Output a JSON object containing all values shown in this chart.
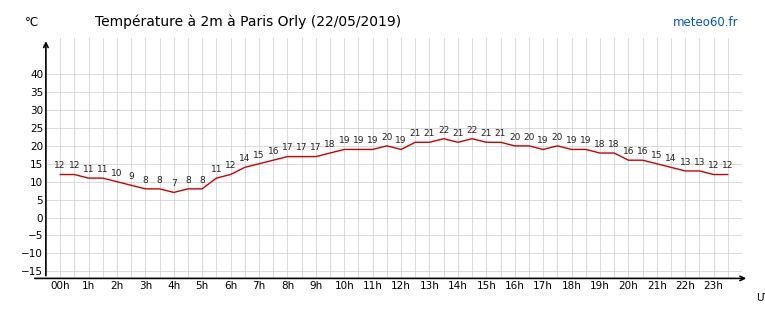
{
  "title": "Température à 2m à Paris Orly (22/05/2019)",
  "ylabel": "°C",
  "watermark": "meteo60.fr",
  "line_color": "#cc0000",
  "grid_color": "#cccccc",
  "bg_color": "#ffffff",
  "title_fontsize": 10,
  "label_fontsize": 7.5,
  "temp_label_fontsize": 6.5,
  "ylim": [
    -17,
    50
  ],
  "yticks": [
    -15,
    -10,
    -5,
    0,
    5,
    10,
    15,
    20,
    25,
    30,
    35,
    40
  ],
  "xtick_positions": [
    0,
    1,
    2,
    3,
    4,
    5,
    6,
    7,
    8,
    9,
    10,
    11,
    12,
    13,
    14,
    15,
    16,
    17,
    18,
    19,
    20,
    21,
    22,
    23
  ],
  "x_tick_labels": [
    "00h",
    "1h",
    "2h",
    "3h",
    "4h",
    "5h",
    "6h",
    "7h",
    "8h",
    "9h",
    "10h",
    "11h",
    "12h",
    "13h",
    "14h",
    "15h",
    "16h",
    "17h",
    "18h",
    "19h",
    "20h",
    "21h",
    "22h",
    "23h"
  ],
  "x_data": [
    0,
    0.5,
    1,
    1.5,
    2,
    2.5,
    3,
    3.5,
    4,
    4.5,
    5,
    5.5,
    6,
    6.5,
    7,
    7.5,
    8,
    8.5,
    9,
    9.5,
    10,
    10.5,
    11,
    11.5,
    12,
    12.5,
    13,
    13.5,
    14,
    14.5,
    15,
    15.5,
    16,
    16.5,
    17,
    17.5,
    18,
    18.5,
    19,
    19.5,
    20,
    20.5,
    21,
    21.5,
    22,
    22.5,
    23,
    23.5
  ],
  "y_data": [
    12,
    12,
    11,
    11,
    10,
    9,
    8,
    8,
    7,
    8,
    8,
    11,
    12,
    14,
    15,
    16,
    17,
    17,
    17,
    18,
    19,
    19,
    19,
    20,
    19,
    21,
    21,
    22,
    21,
    22,
    21,
    21,
    20,
    20,
    19,
    20,
    19,
    19,
    18,
    18,
    16,
    16,
    15,
    14,
    13,
    13,
    12,
    12
  ]
}
